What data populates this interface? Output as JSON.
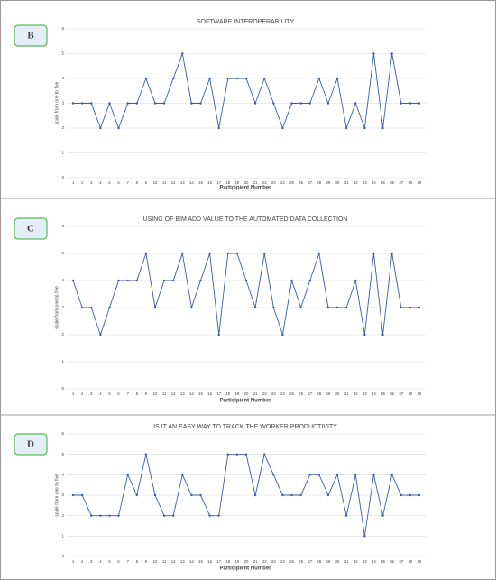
{
  "chart_data": [
    {
      "type": "line",
      "label": "B",
      "title": "SOFTWARE INTEROPERABILITY",
      "ylabel": "scale from one to five",
      "xlabel": "Participient Number",
      "categories": [
        "1",
        "2",
        "3",
        "4",
        "5",
        "6",
        "7",
        "8",
        "9",
        "10",
        "11",
        "12",
        "13",
        "14",
        "15",
        "16",
        "17",
        "18",
        "19",
        "20",
        "21",
        "22",
        "23",
        "24",
        "25",
        "26",
        "27",
        "28",
        "29",
        "30",
        "31",
        "32",
        "33",
        "34",
        "35",
        "36",
        "37",
        "38",
        "39"
      ],
      "values": [
        3,
        3,
        3,
        2,
        3,
        2,
        3,
        3,
        4,
        3,
        3,
        4,
        5,
        3,
        3,
        4,
        2,
        4,
        4,
        4,
        3,
        4,
        3,
        2,
        3,
        3,
        3,
        4,
        3,
        4,
        2,
        3,
        2,
        5,
        2,
        5,
        3,
        3,
        3
      ],
      "color": "#3b5ba5",
      "ylim": [
        0,
        6
      ],
      "yticks": [
        0,
        1,
        2,
        3,
        4,
        5,
        6
      ],
      "grid": true
    },
    {
      "type": "line",
      "label": "C",
      "title": "USING OF BIM ADD VALUE TO THE AUTOMATED DATA COLLECTION",
      "ylabel": "scale from one to five",
      "xlabel": "Participient Number",
      "categories": [
        "1",
        "2",
        "3",
        "4",
        "5",
        "6",
        "7",
        "8",
        "9",
        "10",
        "11",
        "12",
        "13",
        "14",
        "15",
        "16",
        "17",
        "18",
        "19",
        "20",
        "21",
        "22",
        "23",
        "24",
        "25",
        "26",
        "27",
        "28",
        "29",
        "30",
        "31",
        "32",
        "33",
        "34",
        "35",
        "36",
        "37",
        "38",
        "39"
      ],
      "values": [
        4,
        3,
        3,
        2,
        3,
        4,
        4,
        4,
        5,
        3,
        4,
        4,
        5,
        3,
        4,
        5,
        2,
        5,
        5,
        4,
        3,
        5,
        3,
        2,
        4,
        3,
        4,
        5,
        3,
        3,
        3,
        4,
        2,
        5,
        2,
        5,
        3,
        3,
        3
      ],
      "color": "#3b5ba5",
      "ylim": [
        0,
        6
      ],
      "yticks": [
        0,
        1,
        2,
        3,
        4,
        5,
        6
      ],
      "grid": true
    },
    {
      "type": "line",
      "label": "D",
      "title": "IS IT AN EASY WAY TO TRACK THE WORKER PRODUCTIVITY",
      "ylabel": "scale from one to five",
      "xlabel": "Participient Number",
      "categories": [
        "1",
        "2",
        "3",
        "4",
        "5",
        "6",
        "7",
        "8",
        "9",
        "10",
        "11",
        "12",
        "13",
        "14",
        "15",
        "16",
        "17",
        "18",
        "19",
        "20",
        "21",
        "22",
        "23",
        "24",
        "25",
        "26",
        "27",
        "28",
        "29",
        "30",
        "31",
        "32",
        "33",
        "34",
        "35",
        "36",
        "37",
        "38",
        "39"
      ],
      "values": [
        3,
        3,
        2,
        2,
        2,
        2,
        4,
        3,
        5,
        3,
        2,
        2,
        4,
        3,
        3,
        2,
        2,
        5,
        5,
        5,
        3,
        5,
        4,
        3,
        3,
        3,
        4,
        4,
        3,
        4,
        2,
        4,
        1,
        4,
        2,
        4,
        3,
        3,
        3
      ],
      "color": "#3b5ba5",
      "ylim": [
        0,
        6
      ],
      "yticks": [
        0,
        1,
        2,
        3,
        4,
        5,
        6
      ],
      "grid": true
    }
  ]
}
